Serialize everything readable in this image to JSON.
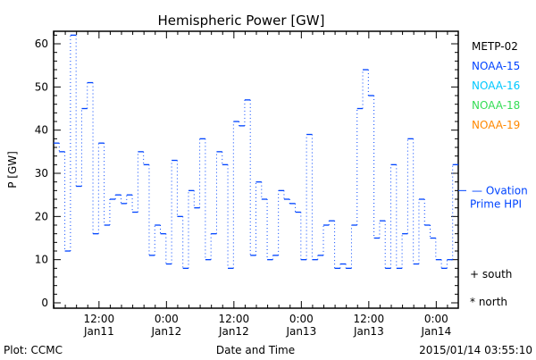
{
  "chart_data": {
    "type": "line",
    "title": "Hemispheric Power [GW]",
    "xlabel": "Date and Time",
    "ylabel": "P [GW]",
    "x_units": "hours since 2015/01/11 00:00",
    "xlim": [
      3.92,
      75.92
    ],
    "ylim": [
      -1.24,
      62.9
    ],
    "yticks": [
      0,
      10,
      20,
      30,
      40,
      50,
      60
    ],
    "xticks": [
      {
        "x": 12,
        "l1": "12:00",
        "l2": "Jan11"
      },
      {
        "x": 24,
        "l1": "0:00",
        "l2": "Jan12"
      },
      {
        "x": 36,
        "l1": "12:00",
        "l2": "Jan12"
      },
      {
        "x": 48,
        "l1": "0:00",
        "l2": "Jan13"
      },
      {
        "x": 60,
        "l1": "12:00",
        "l2": "Jan13"
      },
      {
        "x": 72,
        "l1": "0:00",
        "l2": "Jan14"
      }
    ],
    "series": [
      {
        "name": "NOAA-15",
        "color": "#0044ff",
        "step_hours": 1,
        "values": [
          37,
          35,
          12,
          62,
          27,
          45,
          51,
          16,
          37,
          18,
          24,
          25,
          23,
          25,
          21,
          35,
          32,
          11,
          18,
          16,
          9,
          33,
          20,
          8,
          26,
          22,
          38,
          10,
          16,
          35,
          32,
          8,
          42,
          41,
          47,
          11,
          28,
          24,
          10,
          11,
          26,
          24,
          23,
          21,
          10,
          39,
          10,
          11,
          18,
          19,
          8,
          9,
          8,
          18,
          45,
          54,
          48,
          15,
          19,
          8,
          32,
          8,
          16,
          38,
          9,
          24,
          18,
          15,
          10,
          8,
          10,
          32
        ]
      }
    ],
    "legend": [
      {
        "label": "METP-02",
        "color": "#000000"
      },
      {
        "label": "NOAA-15",
        "color": "#0044ff"
      },
      {
        "label": "NOAA-16",
        "color": "#00c8ff"
      },
      {
        "label": "NOAA-18",
        "color": "#33dd55"
      },
      {
        "label": "NOAA-19",
        "color": "#ff8800"
      }
    ],
    "ovation": {
      "value": 26,
      "label1": "Ovation",
      "label2": "Prime HPI",
      "color": "#0044ff"
    },
    "markers": [
      {
        "label": "+ south"
      },
      {
        "label": "* north"
      }
    ]
  },
  "footer": {
    "plot": "Plot: CCMC",
    "timestamp": "2015/01/14 03:55:10"
  }
}
